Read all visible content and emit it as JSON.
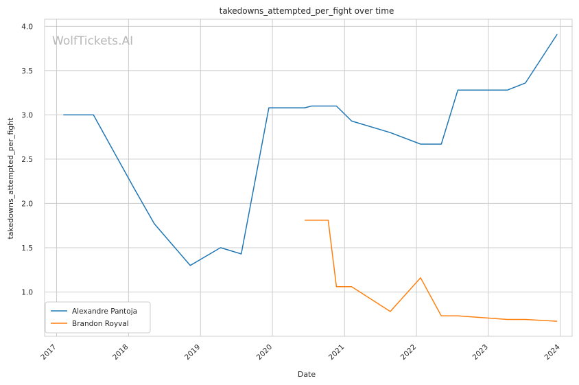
{
  "chart_data": {
    "type": "line",
    "title": "takedowns_attempted_per_fight over time",
    "xlabel": "Date",
    "ylabel": "takedowns_attempted_per_fight",
    "watermark": "WolfTickets.AI",
    "xlim": [
      "2016-11-01",
      "2024-03-01"
    ],
    "ylim": [
      0.5,
      4.08
    ],
    "x_ticks": [
      "2017",
      "2018",
      "2019",
      "2020",
      "2021",
      "2022",
      "2023",
      "2024"
    ],
    "y_ticks": [
      "1.0",
      "1.5",
      "2.0",
      "2.5",
      "3.0",
      "3.5",
      "4.0"
    ],
    "grid": true,
    "legend_position": "lower-left",
    "series": [
      {
        "name": "Alexandre Pantoja",
        "color": "#1f77b4",
        "x": [
          "2017-02-04",
          "2017-07-07",
          "2018-01-27",
          "2018-05-12",
          "2018-11-10",
          "2019-04-13",
          "2019-07-27",
          "2019-12-14",
          "2020-06-13",
          "2020-07-18",
          "2020-11-21",
          "2021-02-06",
          "2021-08-21",
          "2022-01-22",
          "2022-05-07",
          "2022-07-30",
          "2023-04-08",
          "2023-07-08",
          "2023-12-16"
        ],
        "values": [
          3.0,
          3.0,
          2.18,
          1.77,
          1.3,
          1.5,
          1.43,
          3.08,
          3.08,
          3.1,
          3.1,
          2.93,
          2.8,
          2.67,
          2.67,
          3.28,
          3.28,
          3.36,
          3.91
        ]
      },
      {
        "name": "Brandon Royval",
        "color": "#ff7f0e",
        "x": [
          "2020-06-13",
          "2020-10-10",
          "2020-11-21",
          "2021-02-06",
          "2021-08-21",
          "2022-01-22",
          "2022-05-07",
          "2022-07-30",
          "2023-04-08",
          "2023-07-08",
          "2023-12-16"
        ],
        "values": [
          1.81,
          1.81,
          1.06,
          1.06,
          0.78,
          1.16,
          0.73,
          0.73,
          0.69,
          0.69,
          0.67
        ]
      }
    ]
  }
}
